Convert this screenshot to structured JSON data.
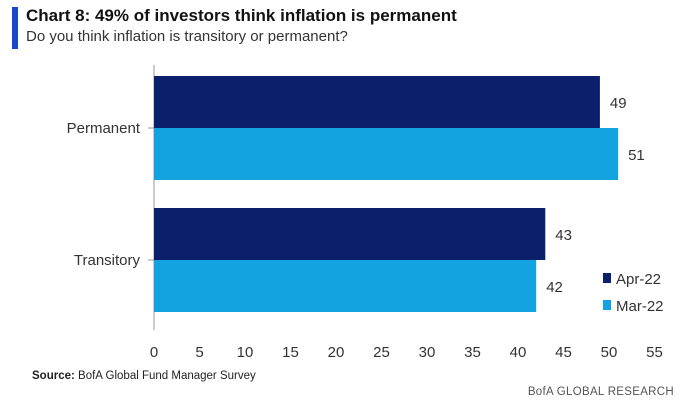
{
  "header": {
    "title": "Chart 8: 49% of investors think inflation is permanent",
    "subtitle": "Do you think inflation is transitory or permanent?"
  },
  "footer": {
    "source_label": "Source:",
    "source_text": "BofA Global Fund Manager Survey",
    "brand": "BofA GLOBAL RESEARCH"
  },
  "chart_data": {
    "type": "bar",
    "orientation": "horizontal",
    "categories": [
      "Permanent",
      "Transitory"
    ],
    "series": [
      {
        "name": "Apr-22",
        "values": [
          49,
          43
        ],
        "color": "#0b1f6b"
      },
      {
        "name": "Mar-22",
        "values": [
          51,
          42
        ],
        "color": "#12a3e0"
      }
    ],
    "xlim": [
      0,
      55
    ],
    "xticks": [
      0,
      5,
      10,
      15,
      20,
      25,
      30,
      35,
      40,
      45,
      50,
      55
    ],
    "grid": false,
    "legend": "bottom-right",
    "data_labels": true
  }
}
